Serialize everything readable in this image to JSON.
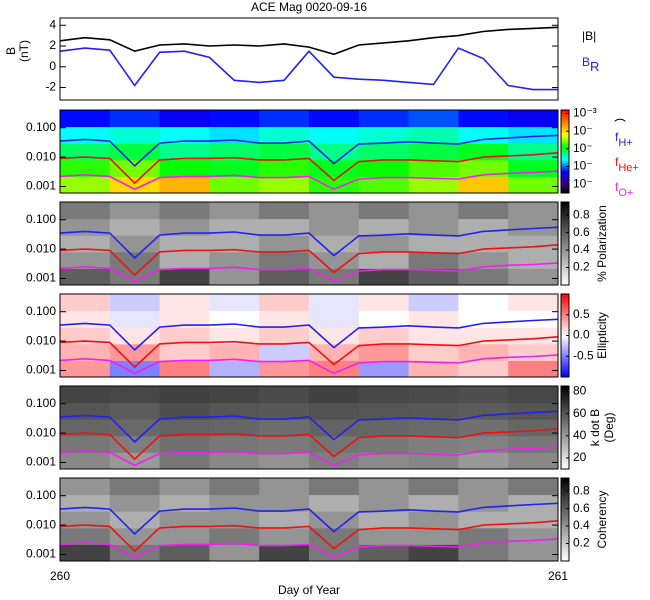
{
  "chart_data": [
    {
      "type": "line",
      "title": "ACE Mag 0020-09-16",
      "ylabel": [
        "B",
        "(nT)"
      ],
      "legend": true,
      "x": [
        260,
        260.05,
        260.1,
        260.15,
        260.2,
        260.25,
        260.3,
        260.35,
        260.4,
        260.45,
        260.5,
        260.55,
        260.6,
        260.65,
        260.7,
        260.75,
        260.8,
        260.85,
        260.9,
        260.95,
        261
      ],
      "xlim": [
        260,
        261
      ],
      "xticks": [
        260,
        261
      ],
      "ylim": [
        -3.2,
        4.7
      ],
      "yticks": [
        -2,
        0,
        2,
        4
      ],
      "series": [
        {
          "name": "|B|",
          "color": "#000000",
          "values": [
            2.5,
            2.8,
            2.6,
            1.5,
            2.1,
            2.2,
            2.0,
            2.1,
            2.0,
            2.2,
            1.9,
            1.2,
            2.1,
            2.3,
            2.5,
            2.8,
            3.0,
            3.4,
            3.6,
            3.7,
            3.8
          ]
        },
        {
          "name": "B",
          "name_subscript": "R",
          "color": "#2222ee",
          "values": [
            1.5,
            1.8,
            1.6,
            -1.8,
            1.4,
            1.5,
            0.9,
            -1.3,
            -1.5,
            -1.3,
            1.5,
            -1.0,
            -1.2,
            -1.3,
            -1.5,
            -1.7,
            1.8,
            0.8,
            -1.8,
            -2.2,
            -2.2
          ]
        }
      ]
    },
    {
      "type": "heatmap",
      "colormap": "rainbow",
      "colorbar_label": [
        ")"
      ],
      "clim": [
        -7.5,
        -2.8
      ],
      "cticks": [
        {
          "value": -3,
          "label": "10⁻³"
        },
        {
          "value": -4,
          "label": "10⁻"
        },
        {
          "value": -5,
          "label": "10⁻"
        },
        {
          "value": -6,
          "label": "10⁻"
        },
        {
          "value": -7,
          "label": "10⁻"
        }
      ],
      "z": [
        [
          -4.5,
          -4.0,
          -3.8,
          -4.6,
          -4.5,
          -4.8,
          -4.7,
          -4.5,
          -3.9,
          -4.6
        ],
        [
          -4.8,
          -4.6,
          -4.9,
          -5.0,
          -4.8,
          -5.0,
          -4.9,
          -4.7,
          -4.6,
          -5.0
        ],
        [
          -5.2,
          -5.1,
          -5.3,
          -5.2,
          -5.1,
          -5.3,
          -5.2,
          -5.1,
          -5.0,
          -5.3
        ],
        [
          -5.6,
          -5.5,
          -5.6,
          -5.7,
          -5.5,
          -5.6,
          -5.5,
          -5.4,
          -5.6,
          -5.7
        ],
        [
          -6.3,
          -6.2,
          -6.4,
          -6.3,
          -6.2,
          -6.3,
          -6.2,
          -6.1,
          -6.3,
          -6.4
        ]
      ],
      "log_y": true,
      "legend": true,
      "x": [
        260,
        260.05,
        260.1,
        260.15,
        260.2,
        260.25,
        260.3,
        260.35,
        260.4,
        260.45,
        260.5,
        260.55,
        260.6,
        260.65,
        260.7,
        260.75,
        260.8,
        260.85,
        260.9,
        260.95,
        261
      ],
      "xlim": [
        260,
        261
      ],
      "xticks": [
        260,
        261
      ],
      "ylim": [
        0.0006,
        0.4
      ],
      "yticks": [
        0.001,
        {
          "value": 0.01,
          "label": "0.010"
        },
        {
          "value": 0.1,
          "label": "0.100"
        }
      ],
      "series": [
        {
          "name": "f",
          "name_subscript": "H+",
          "color": "#2222ee",
          "values": [
            0.035,
            0.04,
            0.035,
            0.005,
            0.03,
            0.035,
            0.035,
            0.038,
            0.03,
            0.03,
            0.035,
            0.006,
            0.028,
            0.03,
            0.033,
            0.03,
            0.028,
            0.04,
            0.045,
            0.05,
            0.055
          ]
        },
        {
          "name": "f",
          "name_subscript": "He+",
          "color": "#ee1111",
          "values": [
            0.009,
            0.01,
            0.009,
            0.0013,
            0.008,
            0.009,
            0.009,
            0.0095,
            0.008,
            0.008,
            0.009,
            0.0016,
            0.007,
            0.008,
            0.008,
            0.0075,
            0.007,
            0.01,
            0.011,
            0.012,
            0.014
          ]
        },
        {
          "name": "f",
          "name_subscript": "O+",
          "color": "#ee22ee",
          "values": [
            0.0022,
            0.0025,
            0.0022,
            0.0008,
            0.002,
            0.0022,
            0.0022,
            0.0024,
            0.002,
            0.002,
            0.0022,
            0.0008,
            0.0018,
            0.002,
            0.002,
            0.0019,
            0.0018,
            0.0025,
            0.0028,
            0.003,
            0.0034
          ]
        }
      ]
    },
    {
      "type": "heatmap",
      "colormap": "gray_r",
      "colorbar_label": [
        "% Polarization"
      ],
      "clim": [
        0,
        0.95
      ],
      "cticks": [
        0.2,
        0.4,
        0.6,
        0.8
      ],
      "z": [
        [
          0.6,
          0.5,
          0.7,
          0.4,
          0.6,
          0.5,
          0.7,
          0.6,
          0.5,
          0.4
        ],
        [
          0.4,
          0.5,
          0.3,
          0.4,
          0.5,
          0.4,
          0.3,
          0.5,
          0.4,
          0.3
        ],
        [
          0.3,
          0.4,
          0.3,
          0.3,
          0.4,
          0.3,
          0.4,
          0.3,
          0.3,
          0.3
        ],
        [
          0.4,
          0.3,
          0.4,
          0.3,
          0.3,
          0.4,
          0.3,
          0.4,
          0.3,
          0.4
        ],
        [
          0.5,
          0.4,
          0.5,
          0.4,
          0.5,
          0.4,
          0.5,
          0.4,
          0.5,
          0.4
        ]
      ],
      "log_y": true,
      "x": [
        260,
        260.05,
        260.1,
        260.15,
        260.2,
        260.25,
        260.3,
        260.35,
        260.4,
        260.45,
        260.5,
        260.55,
        260.6,
        260.65,
        260.7,
        260.75,
        260.8,
        260.85,
        260.9,
        260.95,
        261
      ],
      "xlim": [
        260,
        261
      ],
      "xticks": [
        260,
        261
      ],
      "ylim": [
        0.0006,
        0.4
      ],
      "yticks": [
        0.001,
        {
          "value": 0.01,
          "label": "0.010"
        },
        {
          "value": 0.1,
          "label": "0.100"
        }
      ],
      "series": [
        {
          "color": "#2222ee",
          "values": [
            0.035,
            0.04,
            0.035,
            0.005,
            0.03,
            0.035,
            0.035,
            0.038,
            0.03,
            0.03,
            0.035,
            0.006,
            0.028,
            0.03,
            0.033,
            0.03,
            0.028,
            0.04,
            0.045,
            0.05,
            0.055
          ]
        },
        {
          "color": "#ee1111",
          "values": [
            0.009,
            0.01,
            0.009,
            0.0013,
            0.008,
            0.009,
            0.009,
            0.0095,
            0.008,
            0.008,
            0.009,
            0.0016,
            0.007,
            0.008,
            0.008,
            0.0075,
            0.007,
            0.01,
            0.011,
            0.012,
            0.014
          ]
        },
        {
          "color": "#ee22ee",
          "values": [
            0.0022,
            0.0025,
            0.0022,
            0.0008,
            0.002,
            0.0022,
            0.0022,
            0.0024,
            0.002,
            0.002,
            0.0022,
            0.0008,
            0.0018,
            0.002,
            0.002,
            0.0019,
            0.0018,
            0.0025,
            0.0028,
            0.003,
            0.0034
          ]
        }
      ]
    },
    {
      "type": "heatmap",
      "colormap": "bwr",
      "colorbar_label": [
        "Ellipticity"
      ],
      "clim": [
        -1,
        1
      ],
      "cticks": [
        -0.5,
        {
          "value": 0,
          "label": "0.0"
        },
        0.5
      ],
      "z": [
        [
          0.4,
          -0.5,
          0.5,
          -0.3,
          0.4,
          0.5,
          -0.4,
          0.3,
          0.2,
          0.5
        ],
        [
          0.3,
          0.4,
          0.2,
          0.3,
          -0.2,
          0.3,
          0.4,
          0.2,
          0.3,
          0.2
        ],
        [
          0.2,
          0.1,
          0.2,
          0.1,
          0.2,
          0.1,
          0.2,
          0.1,
          0.1,
          0.1
        ],
        [
          0.1,
          -0.1,
          0.1,
          0.0,
          0.1,
          -0.1,
          0.0,
          0.1,
          0.0,
          0.0
        ],
        [
          0.2,
          -0.2,
          0.1,
          -0.1,
          0.2,
          -0.1,
          0.1,
          -0.2,
          0.0,
          0.1
        ]
      ],
      "log_y": true,
      "x": [
        260,
        260.05,
        260.1,
        260.15,
        260.2,
        260.25,
        260.3,
        260.35,
        260.4,
        260.45,
        260.5,
        260.55,
        260.6,
        260.65,
        260.7,
        260.75,
        260.8,
        260.85,
        260.9,
        260.95,
        261
      ],
      "xlim": [
        260,
        261
      ],
      "xticks": [
        260,
        261
      ],
      "ylim": [
        0.0006,
        0.4
      ],
      "yticks": [
        0.001,
        {
          "value": 0.01,
          "label": "0.010"
        },
        {
          "value": 0.1,
          "label": "0.100"
        }
      ],
      "series": [
        {
          "color": "#2222ee",
          "values": [
            0.035,
            0.04,
            0.035,
            0.005,
            0.03,
            0.035,
            0.035,
            0.038,
            0.03,
            0.03,
            0.035,
            0.006,
            0.028,
            0.03,
            0.033,
            0.03,
            0.028,
            0.04,
            0.045,
            0.05,
            0.055
          ]
        },
        {
          "color": "#ee1111",
          "values": [
            0.009,
            0.01,
            0.009,
            0.0013,
            0.008,
            0.009,
            0.009,
            0.0095,
            0.008,
            0.008,
            0.009,
            0.0016,
            0.007,
            0.008,
            0.008,
            0.0075,
            0.007,
            0.01,
            0.011,
            0.012,
            0.014
          ]
        },
        {
          "color": "#ee22ee",
          "values": [
            0.0022,
            0.0025,
            0.0022,
            0.0008,
            0.002,
            0.0022,
            0.0022,
            0.0024,
            0.002,
            0.002,
            0.0022,
            0.0008,
            0.0018,
            0.002,
            0.002,
            0.0019,
            0.0018,
            0.0025,
            0.0028,
            0.003,
            0.0034
          ]
        }
      ]
    },
    {
      "type": "heatmap",
      "colormap": "gray_r",
      "colorbar_label": [
        "k dot B",
        "(Deg)"
      ],
      "clim": [
        10,
        85
      ],
      "cticks": [
        20,
        40,
        60,
        80
      ],
      "z": [
        [
          45,
          40,
          50,
          45,
          42,
          48,
          44,
          46,
          40,
          45
        ],
        [
          50,
          48,
          52,
          50,
          49,
          51,
          50,
          48,
          47,
          50
        ],
        [
          55,
          54,
          56,
          55,
          53,
          56,
          55,
          54,
          52,
          55
        ],
        [
          60,
          58,
          62,
          60,
          59,
          61,
          60,
          59,
          58,
          60
        ],
        [
          65,
          64,
          66,
          65,
          63,
          66,
          64,
          63,
          62,
          64
        ]
      ],
      "log_y": true,
      "x": [
        260,
        260.05,
        260.1,
        260.15,
        260.2,
        260.25,
        260.3,
        260.35,
        260.4,
        260.45,
        260.5,
        260.55,
        260.6,
        260.65,
        260.7,
        260.75,
        260.8,
        260.85,
        260.9,
        260.95,
        261
      ],
      "xlim": [
        260,
        261
      ],
      "xticks": [
        260,
        261
      ],
      "ylim": [
        0.0006,
        0.4
      ],
      "yticks": [
        0.001,
        {
          "value": 0.01,
          "label": "0.010"
        },
        {
          "value": 0.1,
          "label": "0.100"
        }
      ],
      "series": [
        {
          "color": "#2222ee",
          "values": [
            0.035,
            0.04,
            0.035,
            0.005,
            0.03,
            0.035,
            0.035,
            0.038,
            0.03,
            0.03,
            0.035,
            0.006,
            0.028,
            0.03,
            0.033,
            0.03,
            0.028,
            0.04,
            0.045,
            0.05,
            0.055
          ]
        },
        {
          "color": "#ee1111",
          "values": [
            0.009,
            0.01,
            0.009,
            0.0013,
            0.008,
            0.009,
            0.009,
            0.0095,
            0.008,
            0.008,
            0.009,
            0.0016,
            0.007,
            0.008,
            0.008,
            0.0075,
            0.007,
            0.01,
            0.011,
            0.012,
            0.014
          ]
        },
        {
          "color": "#ee22ee",
          "values": [
            0.0022,
            0.0025,
            0.0022,
            0.0008,
            0.002,
            0.0022,
            0.0022,
            0.0024,
            0.002,
            0.002,
            0.0022,
            0.0008,
            0.0018,
            0.002,
            0.002,
            0.0019,
            0.0018,
            0.0025,
            0.0028,
            0.003,
            0.0034
          ]
        }
      ]
    },
    {
      "type": "heatmap",
      "colormap": "gray_r",
      "colorbar_label": [
        "Coherency"
      ],
      "clim": [
        0,
        0.95
      ],
      "cticks": [
        0.2,
        0.4,
        0.6,
        0.8
      ],
      "z": [
        [
          0.7,
          0.5,
          0.6,
          0.4,
          0.7,
          0.5,
          0.6,
          0.7,
          0.5,
          0.4
        ],
        [
          0.5,
          0.4,
          0.4,
          0.5,
          0.4,
          0.5,
          0.4,
          0.4,
          0.5,
          0.4
        ],
        [
          0.4,
          0.3,
          0.4,
          0.4,
          0.3,
          0.4,
          0.3,
          0.4,
          0.3,
          0.3
        ],
        [
          0.3,
          0.4,
          0.3,
          0.4,
          0.4,
          0.3,
          0.4,
          0.3,
          0.4,
          0.3
        ],
        [
          0.4,
          0.5,
          0.4,
          0.5,
          0.4,
          0.5,
          0.4,
          0.5,
          0.4,
          0.5
        ]
      ],
      "log_y": true,
      "xlabel": "Day of Year",
      "x": [
        260,
        260.05,
        260.1,
        260.15,
        260.2,
        260.25,
        260.3,
        260.35,
        260.4,
        260.45,
        260.5,
        260.55,
        260.6,
        260.65,
        260.7,
        260.75,
        260.8,
        260.85,
        260.9,
        260.95,
        261
      ],
      "xlim": [
        260,
        261
      ],
      "xticks": [
        260,
        261
      ],
      "ylim": [
        0.0006,
        0.4
      ],
      "yticks": [
        0.001,
        {
          "value": 0.01,
          "label": "0.010"
        },
        {
          "value": 0.1,
          "label": "0.100"
        }
      ],
      "series": [
        {
          "color": "#2222ee",
          "values": [
            0.035,
            0.04,
            0.035,
            0.005,
            0.03,
            0.035,
            0.035,
            0.038,
            0.03,
            0.03,
            0.035,
            0.006,
            0.028,
            0.03,
            0.033,
            0.03,
            0.028,
            0.04,
            0.045,
            0.05,
            0.055
          ]
        },
        {
          "color": "#ee1111",
          "values": [
            0.009,
            0.01,
            0.009,
            0.0013,
            0.008,
            0.009,
            0.009,
            0.0095,
            0.008,
            0.008,
            0.009,
            0.0016,
            0.007,
            0.008,
            0.008,
            0.0075,
            0.007,
            0.01,
            0.011,
            0.012,
            0.014
          ]
        },
        {
          "color": "#ee22ee",
          "values": [
            0.0022,
            0.0025,
            0.0022,
            0.0008,
            0.002,
            0.0022,
            0.0022,
            0.0024,
            0.002,
            0.002,
            0.0022,
            0.0008,
            0.0018,
            0.002,
            0.002,
            0.0019,
            0.0018,
            0.0025,
            0.0028,
            0.003,
            0.0034
          ]
        }
      ]
    }
  ]
}
